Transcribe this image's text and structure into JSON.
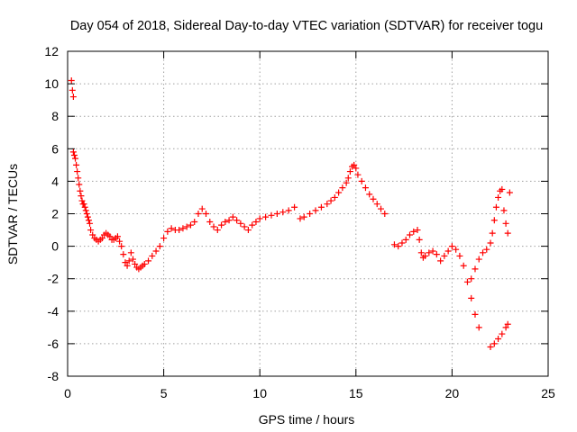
{
  "chart_data": {
    "type": "scatter",
    "title": "Day 054 of 2018, Sidereal Day-to-day VTEC variation (SDTVAR) for receiver togu",
    "xlabel": "GPS time / hours",
    "ylabel": "SDTVAR / TECUs",
    "xlim": [
      0,
      25
    ],
    "ylim": [
      -8,
      12
    ],
    "xticks": [
      "0",
      "5",
      "10",
      "15",
      "20",
      "25"
    ],
    "yticks": [
      "-8",
      "-6",
      "-4",
      "-2",
      "0",
      "2",
      "4",
      "6",
      "8",
      "10",
      "12"
    ],
    "grid": true,
    "marker": "+",
    "color": "#ff0000",
    "series": [
      {
        "name": "SDTVAR",
        "x": [
          0.2,
          0.25,
          0.3,
          0.3,
          0.35,
          0.4,
          0.45,
          0.5,
          0.55,
          0.6,
          0.65,
          0.7,
          0.75,
          0.8,
          0.85,
          0.9,
          0.95,
          1.0,
          1.05,
          1.1,
          1.15,
          1.2,
          1.3,
          1.4,
          1.5,
          1.6,
          1.7,
          1.8,
          1.9,
          2.0,
          2.1,
          2.2,
          2.3,
          2.4,
          2.5,
          2.6,
          2.7,
          2.8,
          2.9,
          3.0,
          3.1,
          3.2,
          3.3,
          3.4,
          3.5,
          3.6,
          3.7,
          3.8,
          3.9,
          4.0,
          4.2,
          4.4,
          4.6,
          4.8,
          5.0,
          5.2,
          5.4,
          5.6,
          5.8,
          6.0,
          6.2,
          6.4,
          6.6,
          6.8,
          7.0,
          7.2,
          7.4,
          7.6,
          7.8,
          8.0,
          8.2,
          8.4,
          8.6,
          8.8,
          9.0,
          9.2,
          9.4,
          9.6,
          9.8,
          10.0,
          10.3,
          10.6,
          10.9,
          11.2,
          11.5,
          11.8,
          12.1,
          12.3,
          12.6,
          12.9,
          13.2,
          13.5,
          13.7,
          13.9,
          14.1,
          14.3,
          14.5,
          14.6,
          14.7,
          14.8,
          14.9,
          15.0,
          15.1,
          15.3,
          15.5,
          15.7,
          15.9,
          16.1,
          16.3,
          16.5,
          17.0,
          17.2,
          17.4,
          17.6,
          17.8,
          18.0,
          18.2,
          18.3,
          18.4,
          18.5,
          18.6,
          18.8,
          19.0,
          19.2,
          19.4,
          19.6,
          19.8,
          20.0,
          20.2,
          20.4,
          20.6,
          20.8,
          21.0,
          21.2,
          21.4,
          21.0,
          21.2,
          21.4,
          21.6,
          21.8,
          22.0,
          22.1,
          22.2,
          22.3,
          22.4,
          22.5,
          22.6,
          22.7,
          22.8,
          22.9,
          22.0,
          22.2,
          22.4,
          22.6,
          22.8,
          22.9,
          23.0
        ],
        "y": [
          10.2,
          9.6,
          9.2,
          5.8,
          5.6,
          5.4,
          5.0,
          4.6,
          4.2,
          3.8,
          3.4,
          3.1,
          2.8,
          2.6,
          2.6,
          2.4,
          2.2,
          2.0,
          1.8,
          1.6,
          1.4,
          1.0,
          0.7,
          0.5,
          0.4,
          0.3,
          0.4,
          0.5,
          0.7,
          0.8,
          0.7,
          0.6,
          0.4,
          0.4,
          0.5,
          0.6,
          0.3,
          0.0,
          -0.5,
          -1.0,
          -1.2,
          -0.9,
          -0.4,
          -0.8,
          -1.1,
          -1.3,
          -1.4,
          -1.3,
          -1.2,
          -1.1,
          -0.9,
          -0.6,
          -0.3,
          0.0,
          0.5,
          0.9,
          1.1,
          1.0,
          1.0,
          1.1,
          1.2,
          1.3,
          1.5,
          2.0,
          2.3,
          2.0,
          1.5,
          1.2,
          1.0,
          1.3,
          1.5,
          1.6,
          1.8,
          1.6,
          1.4,
          1.2,
          1.0,
          1.3,
          1.5,
          1.7,
          1.8,
          1.9,
          2.0,
          2.1,
          2.2,
          2.4,
          1.7,
          1.8,
          2.0,
          2.2,
          2.4,
          2.6,
          2.8,
          3.0,
          3.3,
          3.6,
          3.9,
          4.2,
          4.6,
          4.9,
          5.0,
          4.8,
          4.4,
          4.0,
          3.6,
          3.2,
          2.9,
          2.6,
          2.3,
          2.0,
          0.1,
          0.0,
          0.2,
          0.4,
          0.7,
          0.9,
          1.0,
          0.4,
          -0.4,
          -0.7,
          -0.6,
          -0.4,
          -0.3,
          -0.5,
          -0.9,
          -0.6,
          -0.3,
          0.0,
          -0.2,
          -0.6,
          -1.2,
          -2.2,
          -3.2,
          -4.2,
          -5.0,
          -2.0,
          -1.4,
          -0.8,
          -0.4,
          -0.2,
          0.2,
          0.8,
          1.6,
          2.4,
          3.0,
          3.4,
          3.5,
          2.2,
          1.4,
          0.8,
          -6.2,
          -6.0,
          -5.7,
          -5.4,
          -5.0,
          -4.8,
          3.3
        ]
      }
    ]
  }
}
